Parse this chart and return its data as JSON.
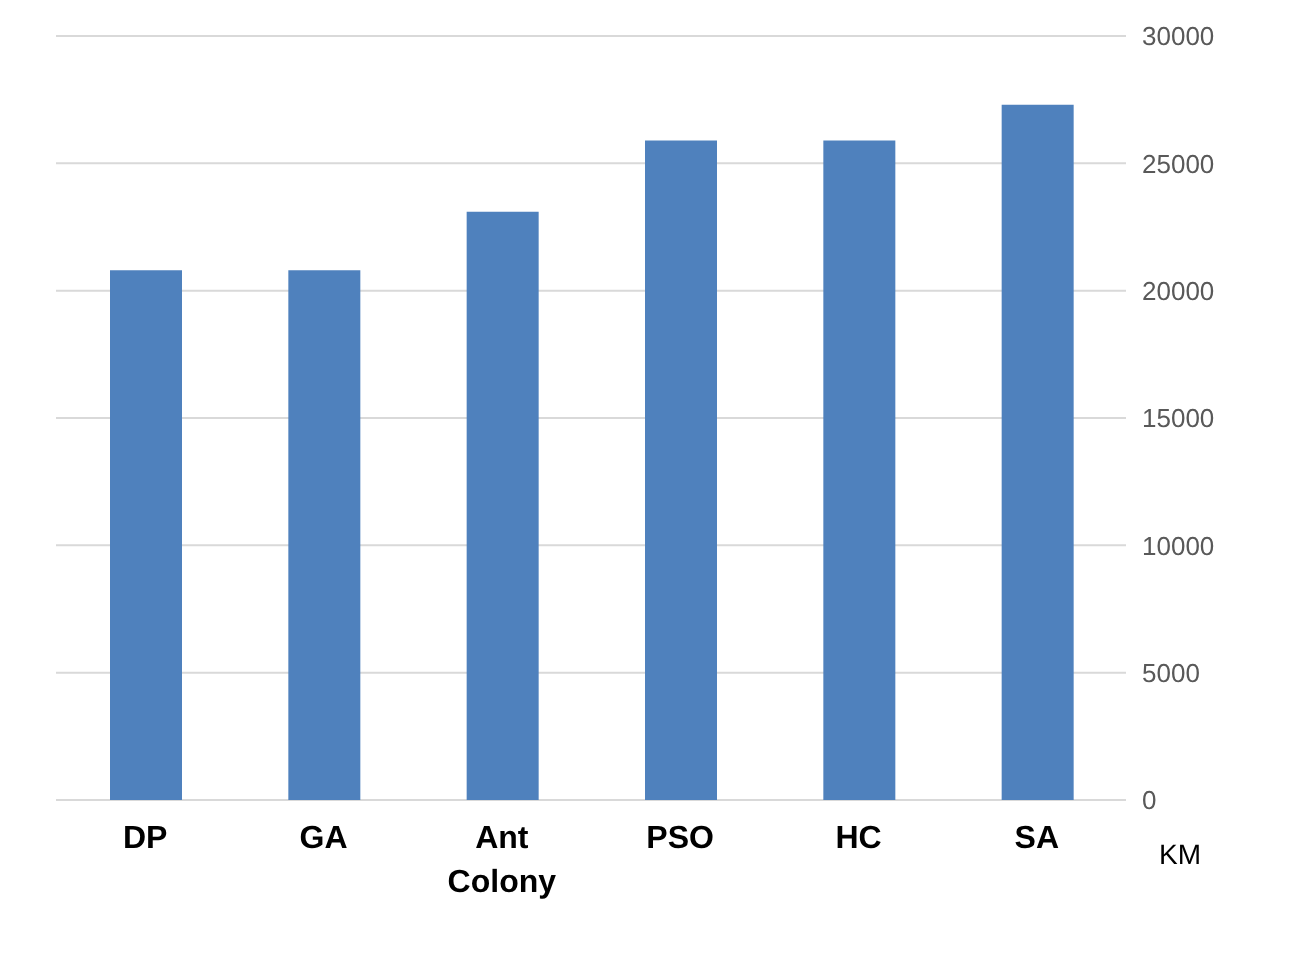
{
  "chart_data": {
    "type": "bar",
    "ylabel": "KM",
    "categories": [
      "DP",
      "GA",
      "Ant Colony",
      "PSO",
      "HC",
      "SA"
    ],
    "values": [
      20800,
      20800,
      23100,
      25900,
      25900,
      27300
    ],
    "color": "#4f81bd",
    "ylim": [
      0,
      30000
    ],
    "yticks": [
      0,
      5000,
      10000,
      15000,
      20000,
      25000,
      30000
    ],
    "grid": "y"
  }
}
